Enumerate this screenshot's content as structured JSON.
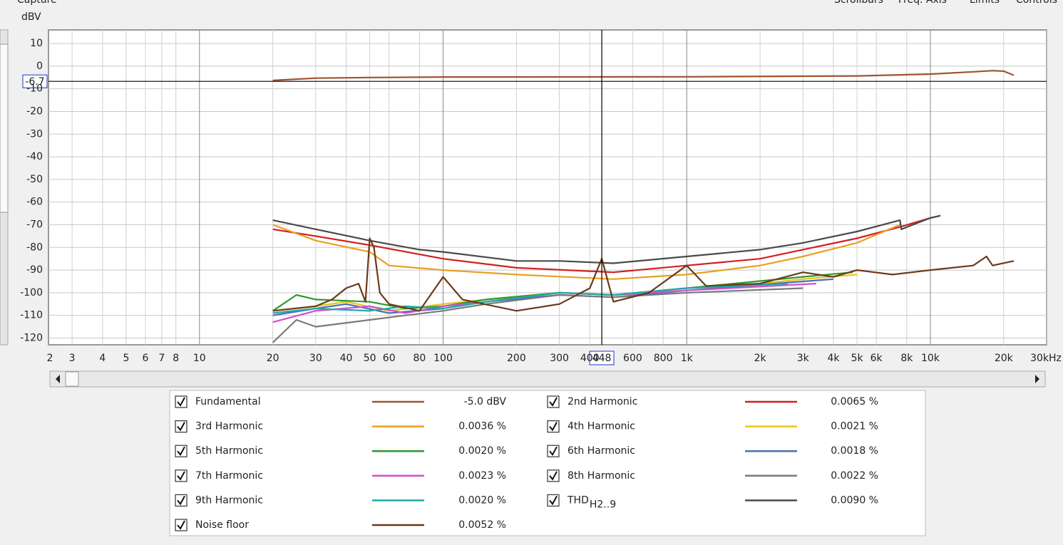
{
  "ui": {
    "capture": "Capture",
    "menu": [
      "Scrollbars",
      "Freq. Axis",
      "Limits",
      "Controls"
    ]
  },
  "chart_data": {
    "type": "line",
    "y_label": "dBV",
    "log_x": true,
    "grid": true,
    "xlim": [
      2.4,
      30000
    ],
    "ylim": [
      -123,
      16
    ],
    "xticks": [
      2,
      3,
      4,
      5,
      6,
      7,
      8,
      10,
      20,
      30,
      40,
      50,
      60,
      80,
      100,
      200,
      300,
      400,
      600,
      800,
      {
        "value": 1000,
        "label": "1k"
      },
      {
        "value": 2000,
        "label": "2k"
      },
      {
        "value": 3000,
        "label": "3k"
      },
      {
        "value": 4000,
        "label": "4k"
      },
      {
        "value": 5000,
        "label": "5k"
      },
      {
        "value": 6000,
        "label": "6k"
      },
      {
        "value": 8000,
        "label": "8k"
      },
      {
        "value": 10000,
        "label": "10k"
      },
      {
        "value": 20000,
        "label": "20k"
      },
      {
        "value": 30000,
        "label": "30kHz"
      }
    ],
    "yticks": [
      10,
      0,
      -10,
      -20,
      -30,
      -40,
      -50,
      -60,
      -70,
      -80,
      -90,
      -100,
      -110,
      -120
    ],
    "cursor": {
      "x": 448,
      "y": -6.7
    },
    "series": [
      {
        "name": "Fundamental",
        "color": "#a0522d",
        "summary": "-5.0 dBV",
        "x": [
          20,
          30,
          50,
          100,
          1000,
          5000,
          10000,
          15000,
          18000,
          20000,
          22000
        ],
        "values": [
          -6.3,
          -5.3,
          -5,
          -4.8,
          -4.7,
          -4.3,
          -3.5,
          -2.5,
          -2,
          -2.2,
          -4
        ]
      },
      {
        "name": "2nd Harmonic",
        "color": "#d21f1f",
        "summary": "0.0065 %",
        "x": [
          20,
          30,
          50,
          100,
          200,
          500,
          1000,
          2000,
          3000,
          5000,
          7500,
          10000,
          11000
        ],
        "values": [
          -72,
          -75,
          -79,
          -85,
          -89,
          -91,
          -88,
          -85,
          -81,
          -76,
          -71,
          -67,
          -66
        ]
      },
      {
        "name": "3rd Harmonic",
        "color": "#e8a020",
        "summary": "0.0036 %",
        "x": [
          20,
          30,
          50,
          60,
          100,
          200,
          500,
          1000,
          2000,
          3000,
          5000,
          7500
        ],
        "values": [
          -70,
          -77,
          -82,
          -88,
          -90,
          -92,
          -94,
          -92,
          -88,
          -84,
          -78,
          -70
        ]
      },
      {
        "name": "4th Harmonic",
        "color": "#e6c619",
        "summary": "0.0021 %",
        "x": [
          20,
          30,
          40,
          60,
          100,
          150,
          300,
          500,
          1000,
          2000,
          3000,
          5000
        ],
        "values": [
          -108,
          -106,
          -104,
          -108,
          -105,
          -103,
          -100,
          -101,
          -98,
          -96,
          -94,
          -92
        ]
      },
      {
        "name": "5th Harmonic",
        "color": "#2e9a2e",
        "summary": "0.0020 %",
        "x": [
          20,
          25,
          30,
          50,
          70,
          100,
          150,
          300,
          500,
          1000,
          3000,
          4800
        ],
        "values": [
          -108,
          -101,
          -103,
          -104,
          -107,
          -106,
          -103,
          -100,
          -101,
          -98,
          -93,
          -91
        ]
      },
      {
        "name": "6th Harmonic",
        "color": "#4a6fb0",
        "summary": "0.0018 %",
        "x": [
          20,
          30,
          40,
          60,
          100,
          150,
          300,
          500,
          1000,
          3000,
          4000
        ],
        "values": [
          -110,
          -107,
          -105,
          -109,
          -107,
          -104,
          -101,
          -102,
          -99,
          -95,
          -94
        ]
      },
      {
        "name": "7th Harmonic",
        "color": "#d050d0",
        "summary": "0.0023 %",
        "x": [
          20,
          30,
          50,
          70,
          100,
          150,
          300,
          500,
          1000,
          3400
        ],
        "values": [
          -113,
          -108,
          -106,
          -109,
          -106,
          -104,
          -100,
          -101,
          -99,
          -96
        ]
      },
      {
        "name": "8th Harmonic",
        "color": "#7a7a7a",
        "summary": "0.0022 %",
        "x": [
          20,
          25,
          30,
          50,
          70,
          100,
          150,
          300,
          500,
          1000,
          3000
        ],
        "values": [
          -122,
          -112,
          -115,
          -112,
          -110,
          -108,
          -105,
          -101,
          -102,
          -100,
          -98
        ]
      },
      {
        "name": "9th Harmonic",
        "color": "#20a8a8",
        "summary": "0.0020 %",
        "x": [
          20,
          30,
          50,
          70,
          100,
          150,
          300,
          500,
          1000,
          2600
        ],
        "values": [
          -109,
          -107,
          -108,
          -106,
          -107,
          -104,
          -100,
          -101,
          -98,
          -96
        ]
      },
      {
        "name": "THD",
        "name_sub": "H2..9",
        "color": "#4a4a4a",
        "summary": "0.0090 %",
        "x": [
          20,
          30,
          50,
          80,
          100,
          200,
          300,
          500,
          1000,
          2000,
          3000,
          5000,
          7500,
          7600,
          10000,
          11000
        ],
        "values": [
          -68,
          -72,
          -77,
          -81,
          -82,
          -86,
          -86,
          -87,
          -84,
          -81,
          -78,
          -73,
          -68,
          -72,
          -67,
          -66
        ]
      },
      {
        "name": "Noise floor",
        "color": "#6b3a1a",
        "summary": "0.0052 %",
        "x": [
          20,
          30,
          35,
          40,
          45,
          48,
          50,
          52,
          55,
          60,
          80,
          100,
          120,
          200,
          300,
          400,
          448,
          500,
          700,
          1000,
          1200,
          2000,
          3000,
          4000,
          5000,
          7000,
          10000,
          15000,
          17000,
          18000,
          22000
        ],
        "values": [
          -108,
          -106,
          -103,
          -98,
          -96,
          -104,
          -76,
          -80,
          -100,
          -105,
          -108,
          -93,
          -103,
          -108,
          -105,
          -98,
          -85,
          -104,
          -100,
          -88,
          -97,
          -96,
          -91,
          -93,
          -90,
          -92,
          -90,
          -88,
          -84,
          -88,
          -86
        ]
      }
    ]
  }
}
